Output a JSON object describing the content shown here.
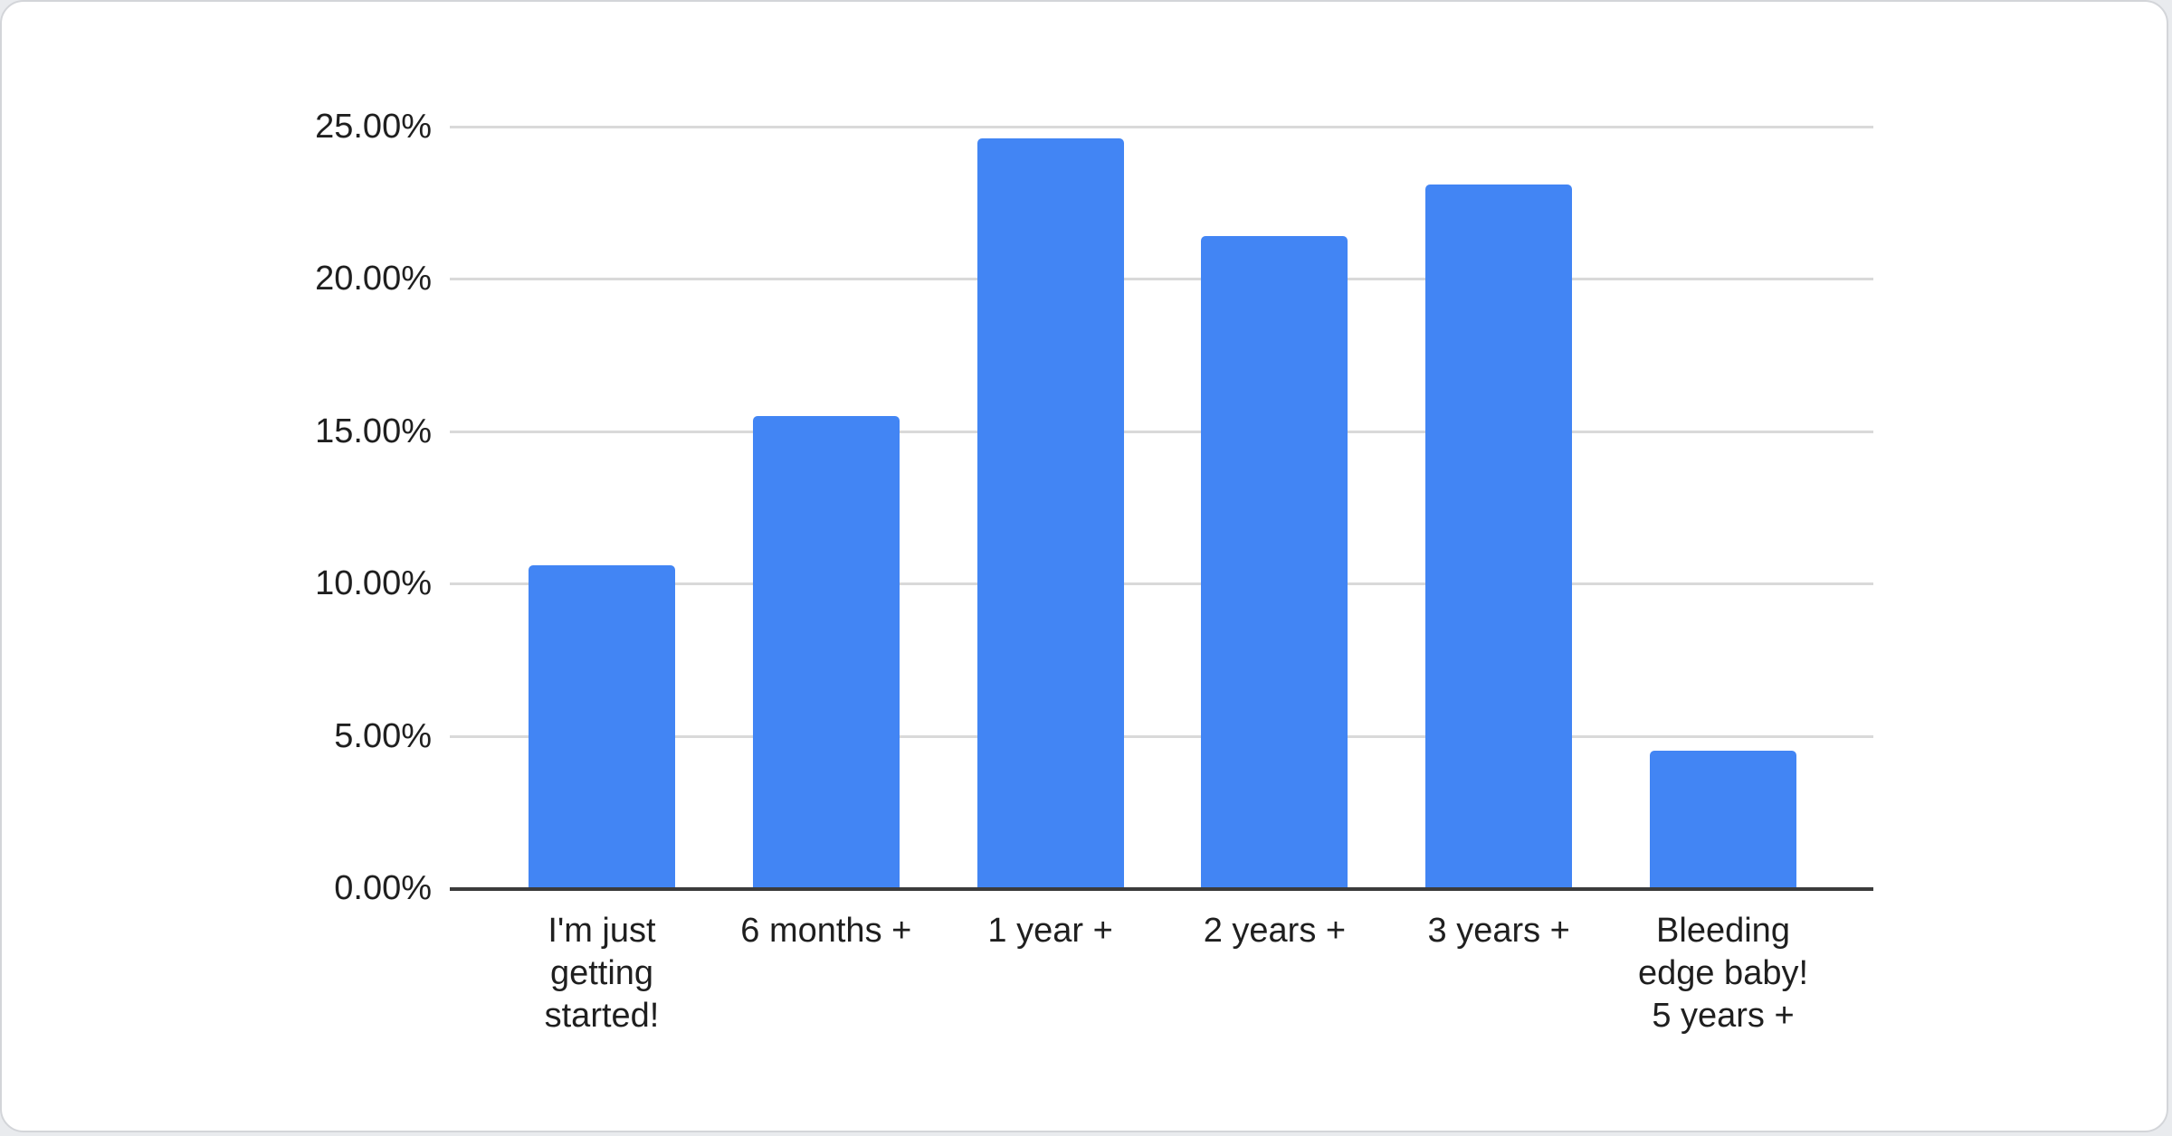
{
  "page": {
    "background_color": "#e9ebee"
  },
  "card": {
    "background_color": "#ffffff",
    "border_color": "#d3d5d9"
  },
  "chart_data": {
    "type": "bar",
    "title": "",
    "categories": [
      "I'm just getting started!",
      "6 months +",
      "1 year +",
      "2 years +",
      "3 years +",
      "Bleeding edge baby! 5 years +"
    ],
    "categories_display": [
      "I'm just\ngetting\nstarted!",
      "6 months +",
      "1 year +",
      "2 years +",
      "3 years +",
      "Bleeding\nedge baby!\n5 years +"
    ],
    "values": [
      10.6,
      15.5,
      24.6,
      21.4,
      23.1,
      4.5
    ],
    "value_unit": "percent",
    "ylim": [
      0,
      25
    ],
    "y_ticks": [
      {
        "label": "25.00%",
        "value": 25
      },
      {
        "label": "20.00%",
        "value": 20
      },
      {
        "label": "15.00%",
        "value": 15
      },
      {
        "label": "10.00%",
        "value": 10
      },
      {
        "label": "5.00%",
        "value": 5
      },
      {
        "label": "0.00%",
        "value": 0
      }
    ],
    "grid": true,
    "legend_position": "none",
    "xlabel": "",
    "ylabel": "",
    "bar_color": "#4285f4",
    "grid_color": "#d9d9d9",
    "axis_color": "#3b3b3b",
    "label_color": "#1f1f1f"
  }
}
